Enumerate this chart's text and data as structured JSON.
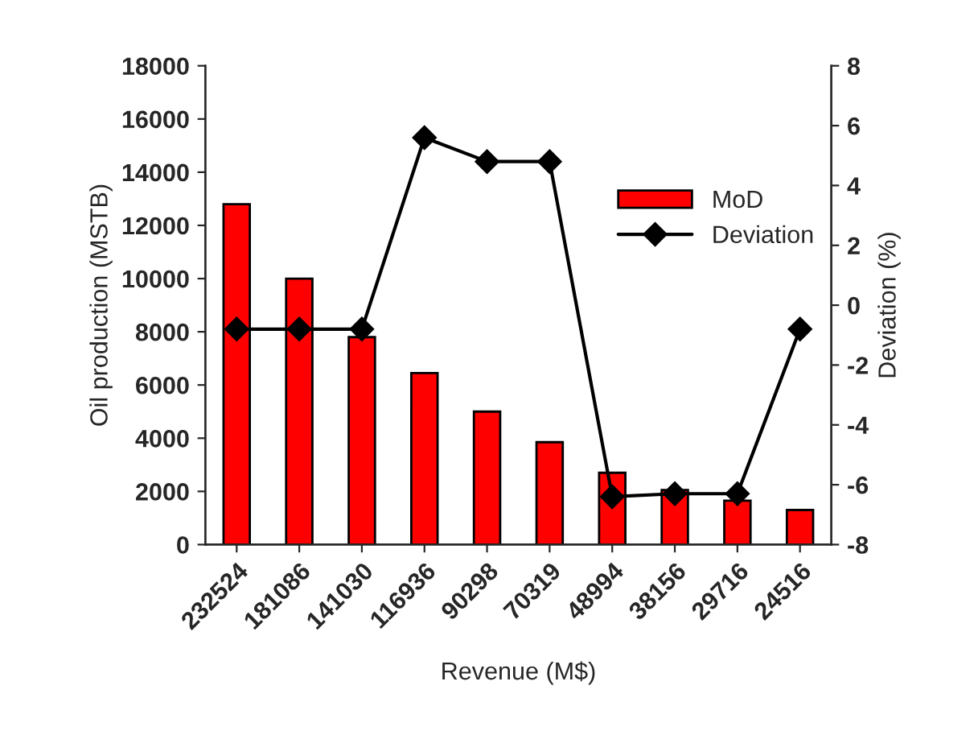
{
  "chart_data": {
    "type": "bar",
    "xlabel": "Revenue (M$)",
    "ylabel": "Oil production (MSTB)",
    "y2label": "Deviation (%)",
    "categories": [
      "232524",
      "181086",
      "141030",
      "116936",
      "90298",
      "70319",
      "48994",
      "38156",
      "29716",
      "24516"
    ],
    "series": [
      {
        "name": "MoD",
        "color": "#ff0000",
        "values": [
          12800,
          10000,
          7800,
          6450,
          5000,
          3850,
          2700,
          2050,
          1650,
          1300
        ]
      },
      {
        "name": "Deviation",
        "type": "line",
        "axis": "y2",
        "color": "#000000",
        "marker": "diamond",
        "values": [
          -0.8,
          -0.8,
          -0.8,
          5.6,
          4.8,
          4.8,
          -6.4,
          -6.3,
          -6.3,
          -0.8
        ]
      }
    ],
    "ylim": [
      0,
      18000
    ],
    "yticks": [
      0,
      2000,
      4000,
      6000,
      8000,
      10000,
      12000,
      14000,
      16000,
      18000
    ],
    "y2lim": [
      -8,
      8
    ],
    "y2ticks": [
      -8,
      -6,
      -4,
      -2,
      0,
      2,
      4,
      6,
      8
    ],
    "grid": false,
    "legend": "center right"
  }
}
